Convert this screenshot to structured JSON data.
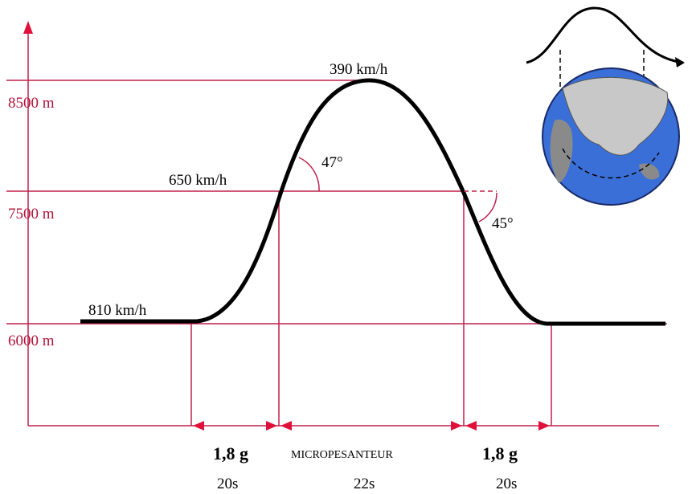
{
  "altitudes": [
    "8500 m",
    "7500 m",
    "6000 m"
  ],
  "speeds": [
    "390 km/h",
    "650 km/h",
    "810 km/h"
  ],
  "angles": [
    "47°",
    "45°"
  ],
  "phases": [
    "1,8 g",
    "MICROPESANTEUR",
    "1,8 g"
  ],
  "durations": [
    "20s",
    "22s",
    "20s"
  ]
}
